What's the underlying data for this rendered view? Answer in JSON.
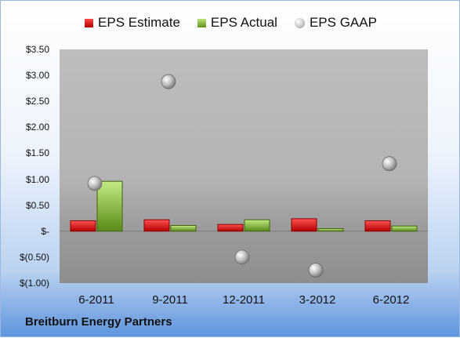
{
  "company": "Breitburn Energy Partners",
  "legend": {
    "estimate": "EPS Estimate",
    "actual": "EPS Actual",
    "gaap": "EPS GAAP"
  },
  "colors": {
    "estimate": "#d01010",
    "actual": "#7aab2c",
    "gaap": "#b0b0b0"
  },
  "chart_data": {
    "type": "bar",
    "categories": [
      "6-2011",
      "9-2011",
      "12-2011",
      "3-2012",
      "6-2012"
    ],
    "series": [
      {
        "name": "EPS Estimate",
        "values": [
          0.2,
          0.22,
          0.13,
          0.24,
          0.2
        ]
      },
      {
        "name": "EPS Actual",
        "values": [
          0.96,
          0.11,
          0.22,
          0.05,
          0.1
        ]
      },
      {
        "name": "EPS GAAP",
        "values": [
          0.92,
          2.88,
          -0.5,
          -0.75,
          1.3
        ]
      }
    ],
    "ylim": [
      -1.0,
      3.5
    ],
    "yticks": [
      3.5,
      3.0,
      2.5,
      2.0,
      1.5,
      1.0,
      0.5,
      0.0,
      -0.5,
      -1.0
    ],
    "ytick_labels": [
      "$3.50",
      "$3.00",
      "$2.50",
      "$2.00",
      "$1.50",
      "$1.00",
      "$0.50",
      "$-",
      "$(0.50)",
      "$(1.00)"
    ],
    "legend_position": "top",
    "grid": false
  }
}
